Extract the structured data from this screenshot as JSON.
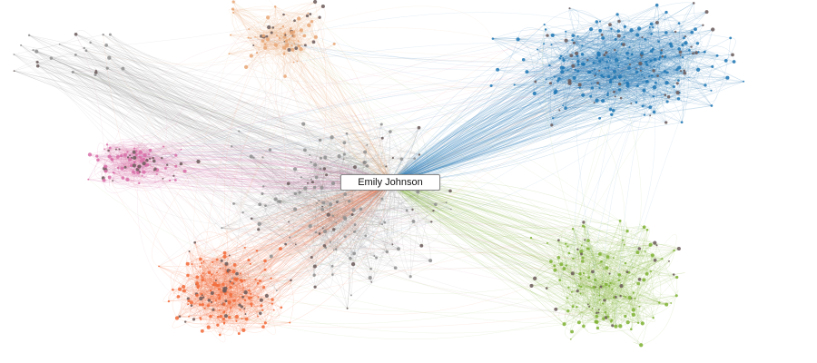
{
  "center_node": {
    "label": "Emily Johnson"
  },
  "clusters": [
    {
      "name": "",
      "color": "#1f77b4"
    },
    {
      "name": "",
      "color": "#f26b3a"
    },
    {
      "name": "",
      "color": "#7fb234"
    },
    {
      "name": "",
      "color": "#d86fa8"
    },
    {
      "name": "",
      "color": "#e8a777"
    },
    {
      "name": "",
      "color": "#8f8f8f"
    }
  ],
  "colors": {
    "background": "#ffffff",
    "label_border": "#8a8a8a"
  }
}
